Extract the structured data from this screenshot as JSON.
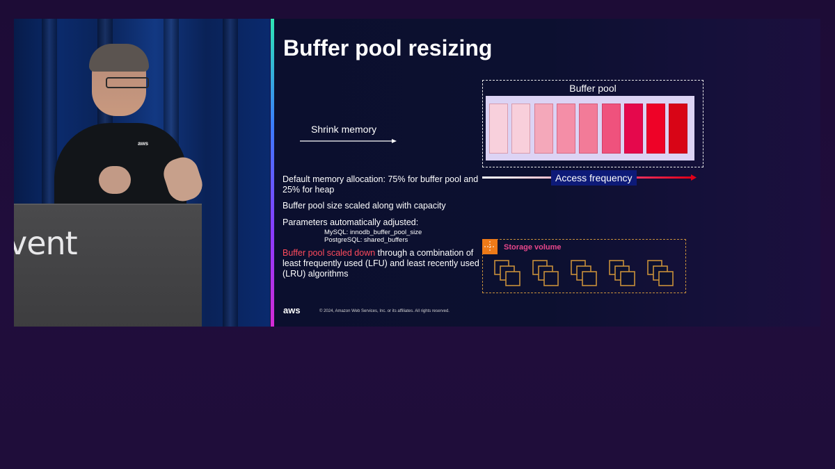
{
  "video": {
    "podium_text": "vent",
    "shirt_logo": "aws"
  },
  "slide": {
    "title": "Buffer pool resizing",
    "shrink_label": "Shrink memory",
    "buffer_pool": {
      "label": "Buffer pool",
      "block_colors": [
        "#f8d0dc",
        "#f8cfdb",
        "#f4a8ba",
        "#f48ea7",
        "#f27b98",
        "#ef527d",
        "#e5084c",
        "#ee0227",
        "#d80516"
      ]
    },
    "access_frequency_label": "Access frequency",
    "bullets": {
      "b1": "Default memory allocation: 75% for buffer pool and 25% for heap",
      "b2": "Buffer pool size scaled along with capacity",
      "b3": "Parameters automatically adjusted:",
      "b3_sub1": "MySQL: innodb_buffer_pool_size",
      "b3_sub2": "PostgreSQL: shared_buffers",
      "b4_highlight": "Buffer pool scaled down",
      "b4_rest": " through a combination of least frequently used (LFU) and least recently used (LRU) algorithms"
    },
    "storage": {
      "label": "Storage volume",
      "icon": "storage-volume-icon",
      "volume_count": 5
    },
    "footer": {
      "logo": "aws",
      "copyright": "© 2024, Amazon Web Services, Inc. or its affiliates. All rights reserved."
    }
  },
  "colors": {
    "accent_red": "#ff4b5c",
    "storage_pink": "#e8468a",
    "storage_orange": "#ee7a18",
    "freq_label_bg": "#0d1a78"
  }
}
